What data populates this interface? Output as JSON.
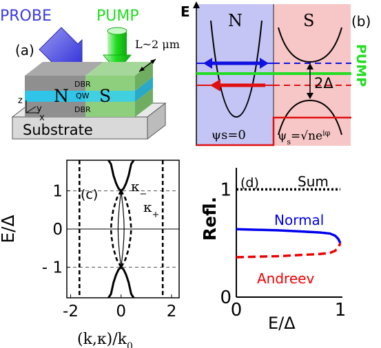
{
  "figure": {
    "panel_a": {
      "label": "(a)",
      "probe_label": "PROBE",
      "pump_label": "PUMP",
      "length_label": "L~2 μm",
      "region_n": "N",
      "region_s": "S",
      "dbr_top": "DBR",
      "qw": "QW",
      "dbr_bottom": "DBR",
      "axis_z": "z",
      "axis_y": "y",
      "axis_x": "x",
      "substrate": "Substrate",
      "colors": {
        "probe": "#3a3adf",
        "pump": "#22dd22",
        "qw": "#33ccee",
        "n_region": "#8e8e8e",
        "s_region": "#8ecf7e"
      }
    },
    "panel_b": {
      "label": "(b)",
      "energy_axis": "E",
      "region_n": "N",
      "region_s": "S",
      "gap_label": "2Δ",
      "pump_label": "PUMP",
      "psi_n": "ψs=0",
      "psi_s": "ψs=√ne^iφ",
      "colors": {
        "n_bg": "#c4c4f5",
        "s_bg": "#f7c6c6",
        "incident": "#1010e0",
        "pump": "#22dd22",
        "reflected": "#e01010",
        "step": "#e01010"
      }
    },
    "panel_c": {
      "label": "(c)",
      "kappa_minus": "κ−",
      "kappa_plus": "κ+"
    },
    "panel_d": {
      "label": "(d)",
      "sum_label": "Sum",
      "normal_label": "Normal",
      "andreev_label": "Andreev"
    }
  },
  "chart_data": [
    {
      "type": "line",
      "panel": "(c)",
      "xlabel": "(k,κ)/k₀",
      "ylabel": "E/Δ",
      "xlim": [
        -2.15,
        2.3
      ],
      "ylim": [
        -1.8,
        1.8
      ],
      "x_ticks": [
        -2,
        0,
        2
      ],
      "x_tick_labels": [
        "-2",
        "0",
        "2"
      ],
      "y_ticks": [
        1,
        0,
        -1
      ],
      "y_tick_labels": [
        "1",
        "0",
        "- 1"
      ],
      "reference_lines": {
        "dashed_horizontal": [
          1,
          -1
        ],
        "solid_horizontal": [
          0
        ]
      },
      "series": [
        {
          "style": "solid-thick",
          "x": [
            0.0,
            0.1,
            0.2,
            0.3,
            0.4,
            0.5
          ],
          "y": [
            1.0,
            1.06,
            1.2,
            1.4,
            1.7,
            1.8
          ]
        },
        {
          "style": "solid-thick",
          "x": [
            0.0,
            -0.1,
            -0.2,
            -0.3,
            -0.4,
            -0.5
          ],
          "y": [
            1.0,
            1.06,
            1.2,
            1.4,
            1.7,
            1.8
          ]
        },
        {
          "style": "solid-thick",
          "x": [
            0.0,
            0.1,
            0.2,
            0.3,
            0.4,
            0.5
          ],
          "y": [
            -1.0,
            -1.06,
            -1.2,
            -1.4,
            -1.7,
            -1.8
          ]
        },
        {
          "style": "solid-thick",
          "x": [
            0.0,
            -0.1,
            -0.2,
            -0.3,
            -0.4,
            -0.5
          ],
          "y": [
            -1.0,
            -1.06,
            -1.2,
            -1.4,
            -1.7,
            -1.8
          ]
        },
        {
          "style": "dashed-thick",
          "x": [
            1.65,
            1.65
          ],
          "y": [
            1.8,
            -1.8
          ]
        },
        {
          "style": "dashed-thick",
          "x": [
            -1.65,
            -1.65
          ],
          "y": [
            1.8,
            -1.8
          ]
        },
        {
          "style": "dashed-thick",
          "x": [
            0.0,
            0.17,
            0.31,
            0.38,
            0.4,
            0.38,
            0.31,
            0.17,
            0.0
          ],
          "y": [
            1.0,
            0.8,
            0.5,
            0.2,
            0.0,
            -0.2,
            -0.5,
            -0.8,
            -1.0
          ]
        },
        {
          "style": "dashed-thick",
          "x": [
            0.0,
            -0.17,
            -0.31,
            -0.38,
            -0.4,
            -0.38,
            -0.31,
            -0.17,
            0.0
          ],
          "y": [
            1.0,
            0.8,
            0.5,
            0.2,
            0.0,
            -0.2,
            -0.5,
            -0.8,
            -1.0
          ]
        },
        {
          "style": "solid-thin",
          "x": [
            0.0,
            0.07,
            0.11,
            0.12,
            0.11,
            0.07,
            0.0
          ],
          "y": [
            1.0,
            0.6,
            0.25,
            0.0,
            -0.25,
            -0.6,
            -1.0
          ]
        },
        {
          "style": "solid-thin",
          "x": [
            0.0,
            -0.07,
            -0.11,
            -0.12,
            -0.11,
            -0.07,
            0.0
          ],
          "y": [
            1.0,
            0.6,
            0.25,
            0.0,
            -0.25,
            -0.6,
            -1.0
          ]
        }
      ]
    },
    {
      "type": "line",
      "panel": "(d)",
      "xlabel": "E/Δ",
      "ylabel": "Refl.",
      "xlim": [
        0,
        1.02
      ],
      "ylim": [
        0,
        1.2
      ],
      "x_ticks": [
        0,
        1
      ],
      "x_tick_labels": [
        "0",
        "1"
      ],
      "y_ticks": [
        0,
        1
      ],
      "y_tick_labels": [
        "0",
        "1"
      ],
      "series": [
        {
          "name": "Sum",
          "style": "dotted",
          "color": "#000000",
          "x": [
            0,
            0.2,
            0.4,
            0.6,
            0.8,
            1.0
          ],
          "y": [
            1.0,
            1.0,
            1.0,
            1.0,
            1.0,
            1.0
          ]
        },
        {
          "name": "Normal",
          "style": "solid",
          "color": "#0000ee",
          "x": [
            0.0,
            0.2,
            0.4,
            0.6,
            0.8,
            0.9,
            0.95,
            0.98,
            1.0
          ],
          "y": [
            0.63,
            0.625,
            0.62,
            0.61,
            0.6,
            0.59,
            0.57,
            0.54,
            0.5
          ]
        },
        {
          "name": "Andreev",
          "style": "dashed",
          "color": "#ee0000",
          "x": [
            0.0,
            0.2,
            0.4,
            0.6,
            0.8,
            0.9,
            0.95,
            0.98,
            1.0
          ],
          "y": [
            0.37,
            0.375,
            0.38,
            0.39,
            0.4,
            0.41,
            0.43,
            0.46,
            0.5
          ]
        }
      ]
    }
  ]
}
